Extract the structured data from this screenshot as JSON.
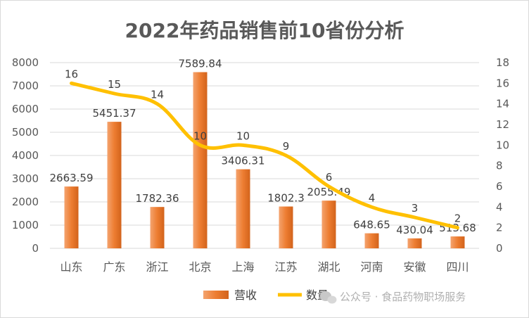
{
  "chart_data": {
    "type": "bar",
    "title": "2022年药品销售前10省份分析",
    "categories": [
      "山东",
      "广东",
      "浙江",
      "北京",
      "上海",
      "江苏",
      "湖北",
      "河南",
      "安徽",
      "四川"
    ],
    "series": [
      {
        "name": "营收",
        "type": "bar",
        "axis": "left",
        "color": "#ed7d31",
        "values": [
          2663.59,
          5451.37,
          1782.36,
          7589.84,
          3406.31,
          1802.3,
          2055.49,
          648.65,
          430.04,
          513.68
        ],
        "labels": [
          "2663.59",
          "5451.37",
          "1782.36",
          "7589.84",
          "3406.31",
          "1802.3",
          "2055.49",
          "648.65",
          "430.04",
          "513.68"
        ]
      },
      {
        "name": "数量",
        "type": "line",
        "axis": "right",
        "color": "#ffc000",
        "values": [
          16,
          15,
          14,
          10,
          10,
          9,
          6,
          4,
          3,
          2
        ],
        "labels": [
          "16",
          "15",
          "14",
          "10",
          "10",
          "9",
          "6",
          "4",
          "3",
          "2"
        ]
      }
    ],
    "y_left": {
      "min": 0,
      "max": 8000,
      "step": 1000
    },
    "y_right": {
      "min": 0,
      "max": 18,
      "step": 2
    },
    "grid": true,
    "legend_position": "bottom"
  },
  "watermark": "公众号 · 食品药物职场服务",
  "watermark_icon": "wechat-icon"
}
